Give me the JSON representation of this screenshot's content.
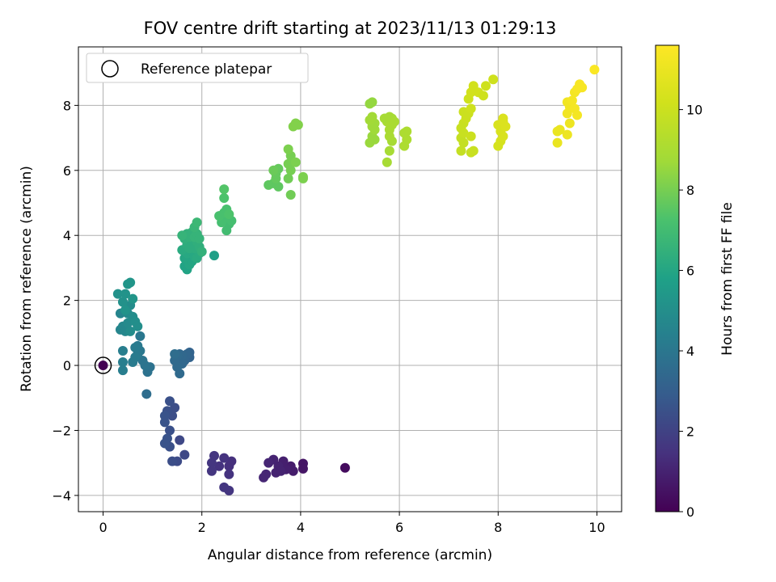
{
  "chart_data": {
    "type": "scatter",
    "title": "FOV centre drift starting at 2023/11/13 01:29:13",
    "xlabel": "Angular distance from reference (arcmin)",
    "ylabel": "Rotation from reference (arcmin)",
    "xlim": [
      -0.5,
      10.5
    ],
    "ylim": [
      -4.5,
      9.8
    ],
    "x_ticks": [
      "0",
      "2",
      "4",
      "6",
      "8",
      "10"
    ],
    "y_ticks": [
      "−4",
      "−2",
      "0",
      "2",
      "4",
      "6",
      "8"
    ],
    "grid": true,
    "legend": {
      "placement": "upper-left",
      "entries": [
        "Reference platepar"
      ]
    },
    "reference_point": {
      "x": 0,
      "y": 0,
      "hours": 0
    },
    "colorbar": {
      "label": "Hours from first FF file",
      "range": [
        0,
        11.6
      ],
      "ticks": [
        "0",
        "2",
        "4",
        "6",
        "8",
        "10"
      ],
      "colormap": "viridis"
    },
    "points": [
      {
        "x": 0.0,
        "y": 0.0,
        "h": 0.0
      },
      {
        "x": 4.9,
        "y": -3.15,
        "h": 0.3
      },
      {
        "x": 4.05,
        "y": -3.02,
        "h": 0.6
      },
      {
        "x": 4.05,
        "y": -3.18,
        "h": 0.6
      },
      {
        "x": 3.85,
        "y": -3.25,
        "h": 0.8
      },
      {
        "x": 3.8,
        "y": -3.1,
        "h": 0.8
      },
      {
        "x": 3.7,
        "y": -3.2,
        "h": 0.9
      },
      {
        "x": 3.65,
        "y": -2.95,
        "h": 0.9
      },
      {
        "x": 3.55,
        "y": -3.1,
        "h": 1.0
      },
      {
        "x": 3.5,
        "y": -3.3,
        "h": 1.0
      },
      {
        "x": 3.45,
        "y": -2.9,
        "h": 1.0
      },
      {
        "x": 3.35,
        "y": -3.0,
        "h": 1.1
      },
      {
        "x": 3.3,
        "y": -3.35,
        "h": 1.1
      },
      {
        "x": 3.25,
        "y": -3.45,
        "h": 1.1
      },
      {
        "x": 3.6,
        "y": -3.25,
        "h": 1.0
      },
      {
        "x": 2.6,
        "y": -2.95,
        "h": 1.4
      },
      {
        "x": 2.55,
        "y": -3.1,
        "h": 1.4
      },
      {
        "x": 2.55,
        "y": -3.35,
        "h": 1.5
      },
      {
        "x": 2.55,
        "y": -3.85,
        "h": 1.6
      },
      {
        "x": 2.45,
        "y": -3.75,
        "h": 1.6
      },
      {
        "x": 2.45,
        "y": -2.85,
        "h": 1.5
      },
      {
        "x": 2.35,
        "y": -3.1,
        "h": 1.5
      },
      {
        "x": 2.25,
        "y": -2.78,
        "h": 1.6
      },
      {
        "x": 2.2,
        "y": -3.0,
        "h": 1.6
      },
      {
        "x": 2.2,
        "y": -3.25,
        "h": 1.6
      },
      {
        "x": 1.65,
        "y": -2.75,
        "h": 2.2
      },
      {
        "x": 1.55,
        "y": -2.3,
        "h": 2.2
      },
      {
        "x": 1.5,
        "y": -2.95,
        "h": 2.3
      },
      {
        "x": 1.45,
        "y": -1.3,
        "h": 2.4
      },
      {
        "x": 1.4,
        "y": -2.95,
        "h": 2.4
      },
      {
        "x": 1.4,
        "y": -1.55,
        "h": 2.4
      },
      {
        "x": 1.35,
        "y": -1.1,
        "h": 2.5
      },
      {
        "x": 1.35,
        "y": -2.0,
        "h": 2.5
      },
      {
        "x": 1.35,
        "y": -2.5,
        "h": 2.5
      },
      {
        "x": 1.3,
        "y": -1.4,
        "h": 2.5
      },
      {
        "x": 1.3,
        "y": -2.25,
        "h": 2.6
      },
      {
        "x": 1.25,
        "y": -1.75,
        "h": 2.6
      },
      {
        "x": 1.25,
        "y": -2.4,
        "h": 2.6
      },
      {
        "x": 1.25,
        "y": -1.55,
        "h": 2.6
      },
      {
        "x": 1.75,
        "y": 0.4,
        "h": 3.2
      },
      {
        "x": 1.75,
        "y": 0.25,
        "h": 3.2
      },
      {
        "x": 1.7,
        "y": 0.35,
        "h": 3.3
      },
      {
        "x": 1.65,
        "y": 0.15,
        "h": 3.3
      },
      {
        "x": 1.6,
        "y": 0.3,
        "h": 3.4
      },
      {
        "x": 1.6,
        "y": 0.05,
        "h": 3.4
      },
      {
        "x": 1.55,
        "y": 0.35,
        "h": 3.4
      },
      {
        "x": 1.5,
        "y": -0.05,
        "h": 3.5
      },
      {
        "x": 1.5,
        "y": 0.3,
        "h": 3.5
      },
      {
        "x": 1.55,
        "y": -0.25,
        "h": 3.5
      },
      {
        "x": 1.45,
        "y": 0.15,
        "h": 3.5
      },
      {
        "x": 1.45,
        "y": 0.35,
        "h": 3.6
      },
      {
        "x": 0.88,
        "y": -0.88,
        "h": 3.6
      },
      {
        "x": 0.95,
        "y": -0.05,
        "h": 3.8
      },
      {
        "x": 0.9,
        "y": -0.2,
        "h": 3.8
      },
      {
        "x": 0.85,
        "y": 0.0,
        "h": 3.9
      },
      {
        "x": 0.8,
        "y": 0.15,
        "h": 3.9
      },
      {
        "x": 0.75,
        "y": 0.45,
        "h": 4.0
      },
      {
        "x": 0.75,
        "y": 0.9,
        "h": 4.0
      },
      {
        "x": 0.7,
        "y": 0.35,
        "h": 4.1
      },
      {
        "x": 0.7,
        "y": 0.6,
        "h": 4.1
      },
      {
        "x": 0.65,
        "y": 0.25,
        "h": 4.2
      },
      {
        "x": 0.65,
        "y": 0.55,
        "h": 4.2
      },
      {
        "x": 0.6,
        "y": 0.1,
        "h": 4.2
      },
      {
        "x": 0.4,
        "y": -0.15,
        "h": 4.3
      },
      {
        "x": 0.4,
        "y": 0.1,
        "h": 4.3
      },
      {
        "x": 0.4,
        "y": 0.45,
        "h": 4.3
      },
      {
        "x": 0.35,
        "y": 1.1,
        "h": 4.6
      },
      {
        "x": 0.35,
        "y": 1.6,
        "h": 4.6
      },
      {
        "x": 0.4,
        "y": 1.2,
        "h": 4.7
      },
      {
        "x": 0.45,
        "y": 1.05,
        "h": 4.7
      },
      {
        "x": 0.5,
        "y": 1.6,
        "h": 4.8
      },
      {
        "x": 0.5,
        "y": 1.3,
        "h": 4.8
      },
      {
        "x": 0.55,
        "y": 1.05,
        "h": 4.9
      },
      {
        "x": 0.55,
        "y": 1.85,
        "h": 4.9
      },
      {
        "x": 0.6,
        "y": 1.5,
        "h": 4.9
      },
      {
        "x": 0.65,
        "y": 1.35,
        "h": 5.0
      },
      {
        "x": 0.7,
        "y": 1.2,
        "h": 5.0
      },
      {
        "x": 0.3,
        "y": 2.2,
        "h": 5.1
      },
      {
        "x": 0.4,
        "y": 1.95,
        "h": 5.1
      },
      {
        "x": 0.45,
        "y": 2.2,
        "h": 5.2
      },
      {
        "x": 0.5,
        "y": 2.5,
        "h": 5.3
      },
      {
        "x": 0.55,
        "y": 2.55,
        "h": 5.3
      },
      {
        "x": 0.6,
        "y": 2.05,
        "h": 5.3
      },
      {
        "x": 0.45,
        "y": 1.7,
        "h": 5.2
      },
      {
        "x": 2.25,
        "y": 3.38,
        "h": 5.7
      },
      {
        "x": 1.65,
        "y": 3.05,
        "h": 5.9
      },
      {
        "x": 1.7,
        "y": 2.95,
        "h": 5.9
      },
      {
        "x": 1.75,
        "y": 3.1,
        "h": 6.0
      },
      {
        "x": 1.8,
        "y": 3.2,
        "h": 6.0
      },
      {
        "x": 1.65,
        "y": 3.3,
        "h": 6.0
      },
      {
        "x": 1.7,
        "y": 3.45,
        "h": 6.1
      },
      {
        "x": 1.8,
        "y": 3.5,
        "h": 6.1
      },
      {
        "x": 1.85,
        "y": 3.35,
        "h": 6.1
      },
      {
        "x": 1.9,
        "y": 3.3,
        "h": 6.2
      },
      {
        "x": 1.95,
        "y": 3.45,
        "h": 6.2
      },
      {
        "x": 1.6,
        "y": 3.55,
        "h": 6.2
      },
      {
        "x": 1.7,
        "y": 3.7,
        "h": 6.3
      },
      {
        "x": 1.8,
        "y": 3.75,
        "h": 6.3
      },
      {
        "x": 1.85,
        "y": 3.6,
        "h": 6.3
      },
      {
        "x": 1.9,
        "y": 3.8,
        "h": 6.4
      },
      {
        "x": 1.95,
        "y": 3.65,
        "h": 6.4
      },
      {
        "x": 1.65,
        "y": 3.9,
        "h": 6.4
      },
      {
        "x": 1.7,
        "y": 4.05,
        "h": 6.5
      },
      {
        "x": 1.75,
        "y": 3.95,
        "h": 6.5
      },
      {
        "x": 1.8,
        "y": 4.1,
        "h": 6.5
      },
      {
        "x": 1.85,
        "y": 3.95,
        "h": 6.6
      },
      {
        "x": 1.9,
        "y": 4.05,
        "h": 6.6
      },
      {
        "x": 1.95,
        "y": 3.9,
        "h": 6.6
      },
      {
        "x": 2.0,
        "y": 3.5,
        "h": 6.5
      },
      {
        "x": 1.6,
        "y": 4.0,
        "h": 6.6
      },
      {
        "x": 1.85,
        "y": 4.25,
        "h": 6.7
      },
      {
        "x": 1.9,
        "y": 4.4,
        "h": 6.8
      },
      {
        "x": 1.75,
        "y": 3.6,
        "h": 6.3
      },
      {
        "x": 2.5,
        "y": 4.15,
        "h": 7.0
      },
      {
        "x": 2.55,
        "y": 4.35,
        "h": 7.0
      },
      {
        "x": 2.6,
        "y": 4.45,
        "h": 7.1
      },
      {
        "x": 2.45,
        "y": 4.55,
        "h": 7.1
      },
      {
        "x": 2.4,
        "y": 4.4,
        "h": 7.1
      },
      {
        "x": 2.35,
        "y": 4.6,
        "h": 7.2
      },
      {
        "x": 2.45,
        "y": 4.7,
        "h": 7.2
      },
      {
        "x": 2.5,
        "y": 4.8,
        "h": 7.2
      },
      {
        "x": 2.55,
        "y": 4.65,
        "h": 7.3
      },
      {
        "x": 2.45,
        "y": 5.15,
        "h": 7.3
      },
      {
        "x": 2.45,
        "y": 5.42,
        "h": 7.4
      },
      {
        "x": 3.55,
        "y": 5.5,
        "h": 7.6
      },
      {
        "x": 3.45,
        "y": 5.6,
        "h": 7.6
      },
      {
        "x": 3.35,
        "y": 5.55,
        "h": 7.6
      },
      {
        "x": 3.5,
        "y": 5.75,
        "h": 7.7
      },
      {
        "x": 3.5,
        "y": 5.9,
        "h": 7.7
      },
      {
        "x": 3.55,
        "y": 6.05,
        "h": 7.7
      },
      {
        "x": 3.45,
        "y": 6.0,
        "h": 7.8
      },
      {
        "x": 3.8,
        "y": 5.25,
        "h": 7.9
      },
      {
        "x": 3.75,
        "y": 5.75,
        "h": 7.9
      },
      {
        "x": 3.8,
        "y": 6.0,
        "h": 8.0
      },
      {
        "x": 3.75,
        "y": 6.2,
        "h": 8.0
      },
      {
        "x": 3.8,
        "y": 6.45,
        "h": 8.0
      },
      {
        "x": 3.75,
        "y": 6.65,
        "h": 8.1
      },
      {
        "x": 3.9,
        "y": 6.25,
        "h": 8.1
      },
      {
        "x": 4.05,
        "y": 5.75,
        "h": 8.1
      },
      {
        "x": 4.05,
        "y": 5.8,
        "h": 8.1
      },
      {
        "x": 3.85,
        "y": 7.35,
        "h": 8.2
      },
      {
        "x": 3.9,
        "y": 7.45,
        "h": 8.2
      },
      {
        "x": 3.95,
        "y": 7.4,
        "h": 8.2
      },
      {
        "x": 5.4,
        "y": 6.85,
        "h": 8.6
      },
      {
        "x": 5.5,
        "y": 6.95,
        "h": 8.6
      },
      {
        "x": 5.45,
        "y": 7.05,
        "h": 8.6
      },
      {
        "x": 5.5,
        "y": 7.25,
        "h": 8.7
      },
      {
        "x": 5.45,
        "y": 7.35,
        "h": 8.7
      },
      {
        "x": 5.5,
        "y": 7.45,
        "h": 8.7
      },
      {
        "x": 5.4,
        "y": 7.55,
        "h": 8.8
      },
      {
        "x": 5.45,
        "y": 7.65,
        "h": 8.8
      },
      {
        "x": 5.4,
        "y": 8.05,
        "h": 8.5
      },
      {
        "x": 5.45,
        "y": 8.1,
        "h": 8.5
      },
      {
        "x": 5.75,
        "y": 6.25,
        "h": 8.9
      },
      {
        "x": 5.8,
        "y": 6.6,
        "h": 8.9
      },
      {
        "x": 5.85,
        "y": 6.9,
        "h": 8.9
      },
      {
        "x": 5.8,
        "y": 7.05,
        "h": 9.0
      },
      {
        "x": 5.8,
        "y": 7.25,
        "h": 9.0
      },
      {
        "x": 5.85,
        "y": 7.4,
        "h": 9.0
      },
      {
        "x": 5.75,
        "y": 7.5,
        "h": 9.0
      },
      {
        "x": 5.7,
        "y": 7.6,
        "h": 8.9
      },
      {
        "x": 5.8,
        "y": 7.65,
        "h": 8.9
      },
      {
        "x": 5.85,
        "y": 7.6,
        "h": 8.9
      },
      {
        "x": 5.9,
        "y": 7.5,
        "h": 9.0
      },
      {
        "x": 6.1,
        "y": 6.75,
        "h": 9.1
      },
      {
        "x": 6.15,
        "y": 6.95,
        "h": 9.1
      },
      {
        "x": 6.1,
        "y": 7.15,
        "h": 9.1
      },
      {
        "x": 6.15,
        "y": 7.2,
        "h": 9.1
      },
      {
        "x": 7.25,
        "y": 6.6,
        "h": 9.8
      },
      {
        "x": 7.3,
        "y": 6.85,
        "h": 9.8
      },
      {
        "x": 7.25,
        "y": 7.0,
        "h": 9.8
      },
      {
        "x": 7.3,
        "y": 7.15,
        "h": 9.9
      },
      {
        "x": 7.25,
        "y": 7.3,
        "h": 9.9
      },
      {
        "x": 7.3,
        "y": 7.45,
        "h": 9.9
      },
      {
        "x": 7.35,
        "y": 7.6,
        "h": 10.0
      },
      {
        "x": 7.3,
        "y": 7.8,
        "h": 10.0
      },
      {
        "x": 7.4,
        "y": 7.75,
        "h": 10.0
      },
      {
        "x": 7.45,
        "y": 7.9,
        "h": 10.1
      },
      {
        "x": 7.45,
        "y": 6.55,
        "h": 9.9
      },
      {
        "x": 7.5,
        "y": 6.6,
        "h": 9.9
      },
      {
        "x": 7.45,
        "y": 7.05,
        "h": 10.0
      },
      {
        "x": 7.4,
        "y": 8.2,
        "h": 10.1
      },
      {
        "x": 7.45,
        "y": 8.4,
        "h": 10.2
      },
      {
        "x": 7.5,
        "y": 8.5,
        "h": 10.2
      },
      {
        "x": 7.5,
        "y": 8.6,
        "h": 10.2
      },
      {
        "x": 7.6,
        "y": 8.4,
        "h": 10.2
      },
      {
        "x": 7.7,
        "y": 8.3,
        "h": 10.1
      },
      {
        "x": 7.75,
        "y": 8.6,
        "h": 10.1
      },
      {
        "x": 7.9,
        "y": 8.8,
        "h": 10.1
      },
      {
        "x": 8.0,
        "y": 6.75,
        "h": 10.3
      },
      {
        "x": 8.05,
        "y": 6.9,
        "h": 10.3
      },
      {
        "x": 8.1,
        "y": 7.05,
        "h": 10.4
      },
      {
        "x": 8.05,
        "y": 7.2,
        "h": 10.4
      },
      {
        "x": 8.0,
        "y": 7.4,
        "h": 10.4
      },
      {
        "x": 8.1,
        "y": 7.5,
        "h": 10.5
      },
      {
        "x": 8.1,
        "y": 7.6,
        "h": 10.5
      },
      {
        "x": 8.15,
        "y": 7.35,
        "h": 10.5
      },
      {
        "x": 9.2,
        "y": 6.85,
        "h": 11.0
      },
      {
        "x": 9.25,
        "y": 7.25,
        "h": 11.0
      },
      {
        "x": 9.2,
        "y": 7.2,
        "h": 11.0
      },
      {
        "x": 9.4,
        "y": 7.1,
        "h": 11.1
      },
      {
        "x": 9.45,
        "y": 7.45,
        "h": 11.1
      },
      {
        "x": 9.4,
        "y": 7.75,
        "h": 11.2
      },
      {
        "x": 9.45,
        "y": 7.95,
        "h": 11.2
      },
      {
        "x": 9.4,
        "y": 8.1,
        "h": 11.2
      },
      {
        "x": 9.5,
        "y": 8.15,
        "h": 11.3
      },
      {
        "x": 9.55,
        "y": 7.9,
        "h": 11.3
      },
      {
        "x": 9.6,
        "y": 7.7,
        "h": 11.3
      },
      {
        "x": 9.55,
        "y": 8.4,
        "h": 11.3
      },
      {
        "x": 9.6,
        "y": 8.5,
        "h": 11.4
      },
      {
        "x": 9.65,
        "y": 8.65,
        "h": 11.4
      },
      {
        "x": 9.7,
        "y": 8.55,
        "h": 11.4
      },
      {
        "x": 9.95,
        "y": 9.1,
        "h": 11.5
      }
    ]
  }
}
